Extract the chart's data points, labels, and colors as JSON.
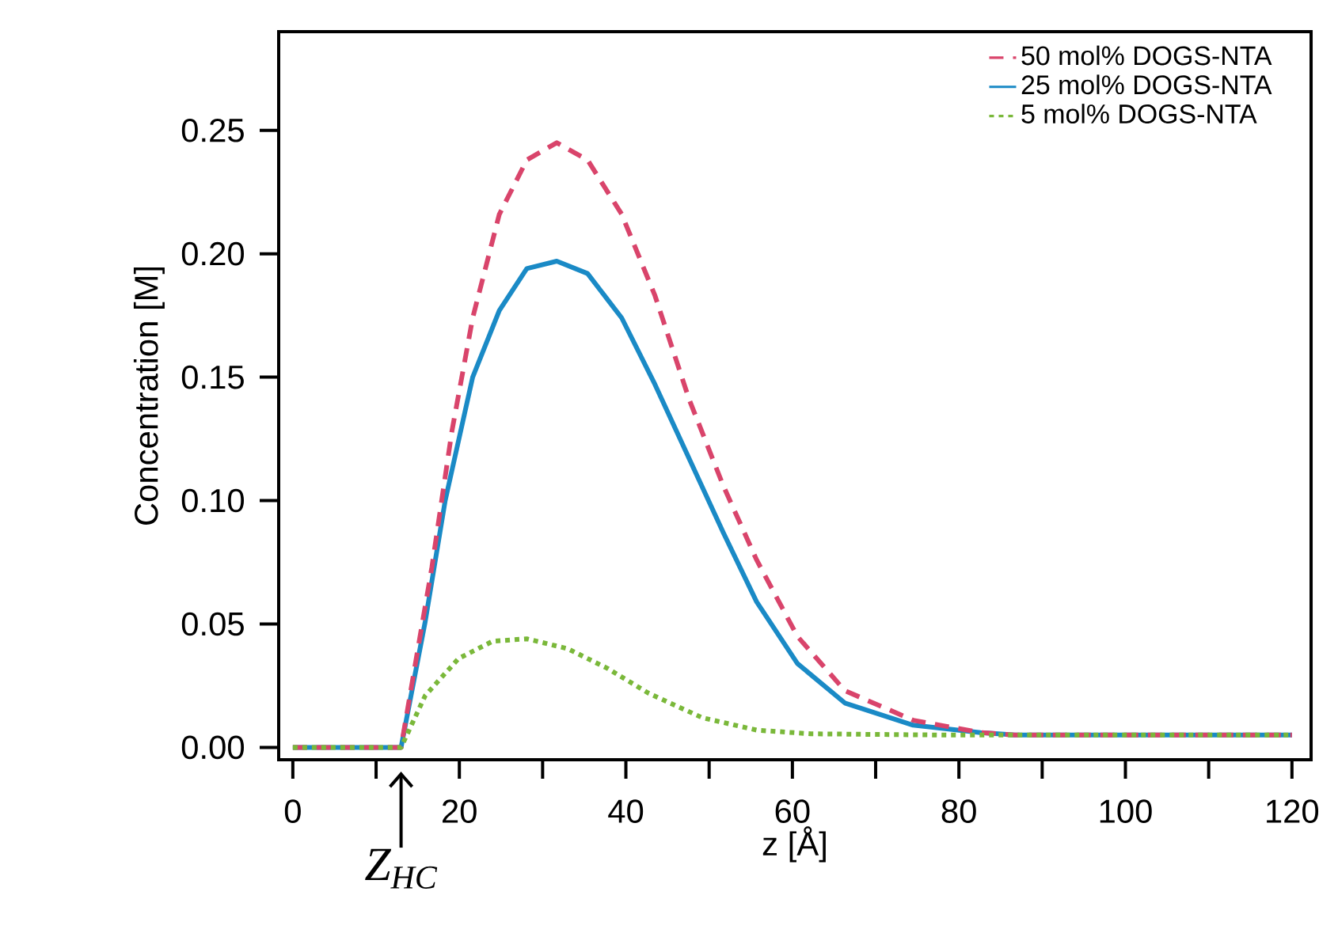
{
  "chart_data": {
    "type": "line",
    "xlabel": "z [Å]",
    "ylabel": "Concentration [M]",
    "xlim": [
      -1.7,
      122.3
    ],
    "ylim": [
      -0.005,
      0.29
    ],
    "xticks": [
      0,
      {
        "value": 10,
        "label": null
      },
      20,
      {
        "value": 30,
        "label": null
      },
      40,
      {
        "value": 50,
        "label": null
      },
      60,
      {
        "value": 70,
        "label": null
      },
      80,
      {
        "value": 90,
        "label": null
      },
      100,
      {
        "value": 110,
        "label": null
      },
      120
    ],
    "yticks": [
      {
        "value": 0,
        "label": "0.00"
      },
      {
        "value": 0.05,
        "label": "0.05"
      },
      {
        "value": 0.1,
        "label": "0.10"
      },
      {
        "value": 0.15,
        "label": "0.15"
      },
      {
        "value": 0.2,
        "label": "0.20"
      },
      {
        "value": 0.25,
        "label": "0.25"
      }
    ],
    "grid": false,
    "legend": "top right",
    "marker": "none",
    "annotations": [
      {
        "text": "Z$_{HC}$",
        "x": 13,
        "y": 0
      }
    ],
    "series": [
      {
        "name": "50 mol% DOGS-NTA",
        "color": "#d9446b",
        "line_style": "dashed",
        "x": [
          0,
          13,
          16.7,
          19.1,
          21.6,
          24.8,
          28.1,
          31.7,
          35.4,
          39.5,
          43.5,
          47.6,
          51.7,
          55.7,
          60.6,
          66.3,
          74.5,
          82.6,
          86.7,
          120
        ],
        "values": [
          0,
          0,
          0.073,
          0.128,
          0.174,
          0.216,
          0.238,
          0.245,
          0.238,
          0.216,
          0.183,
          0.141,
          0.106,
          0.076,
          0.045,
          0.023,
          0.011,
          0.006,
          0.005,
          0.005
        ]
      },
      {
        "name": "25 mol% DOGS-NTA",
        "color": "#1a8ac6",
        "line_style": "solid",
        "x": [
          0,
          13,
          15.9,
          18.3,
          21.6,
          24.8,
          28.1,
          31.7,
          35.4,
          39.5,
          43.5,
          47.6,
          51.7,
          55.7,
          60.6,
          66.3,
          74.5,
          82.6,
          86.7,
          120
        ],
        "values": [
          0,
          0,
          0.051,
          0.1,
          0.15,
          0.177,
          0.194,
          0.197,
          0.192,
          0.174,
          0.147,
          0.117,
          0.087,
          0.059,
          0.034,
          0.018,
          0.009,
          0.006,
          0.005,
          0.005
        ]
      },
      {
        "name": "5 mol% DOGS-NTA",
        "color": "#7ab83a",
        "line_style": "dotted",
        "x": [
          0,
          13,
          15.9,
          19.9,
          24.0,
          28.1,
          33.0,
          37.8,
          42.7,
          49.2,
          55.7,
          62.2,
          78.5,
          120
        ],
        "values": [
          0,
          0,
          0.021,
          0.036,
          0.043,
          0.044,
          0.04,
          0.032,
          0.022,
          0.012,
          0.007,
          0.0055,
          0.005,
          0.005
        ]
      }
    ]
  }
}
